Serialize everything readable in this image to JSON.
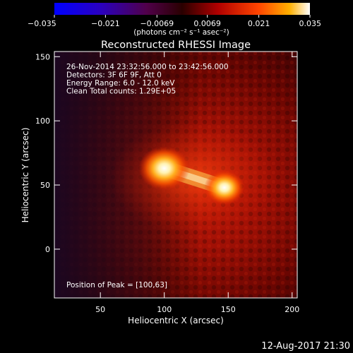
{
  "chart_data": {
    "type": "heatmap",
    "title": "Reconstructed RHESSI Image",
    "xlabel": "Heliocentric X (arcsec)",
    "ylabel": "Heliocentric Y (arcsec)",
    "xlim": [
      14,
      204
    ],
    "ylim": [
      -38,
      154
    ],
    "x_ticks": [
      50,
      100,
      150,
      200
    ],
    "y_ticks": [
      0,
      50,
      100,
      150
    ],
    "grid": false,
    "colormap": "fire",
    "colorbar": {
      "range": [
        -0.035,
        0.035
      ],
      "tick_values": [
        -0.035,
        -0.021,
        -0.0069,
        0.0069,
        0.021,
        0.035
      ],
      "tick_labels": [
        "−0.035",
        "−0.021",
        "−0.0069",
        "0.0069",
        "0.021",
        "0.035"
      ],
      "units_label": "(photons cm⁻² s⁻¹ asec⁻²)",
      "placement": "top"
    },
    "annotations": [
      "26-Nov-2014 23:32:56.000 to 23:42:56.000",
      "Detectors: 3F 6F 9F, Att 0",
      "Energy Range: 6.0 - 12.0 keV",
      "Clean    Total counts: 1.29E+05"
    ],
    "peak_label": "Position of Peak = [100,63]",
    "sources": [
      {
        "name": "source-1",
        "x": 100,
        "y": 63,
        "peak_value": 0.035
      },
      {
        "name": "source-2",
        "x": 147,
        "y": 48,
        "peak_value": 0.028
      }
    ]
  },
  "timestamp": "12-Aug-2017 21:30"
}
